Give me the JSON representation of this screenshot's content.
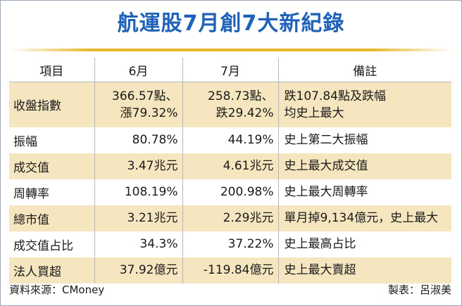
{
  "title": "航運股7月創7大新紀錄",
  "headers": [
    "項目",
    "6月",
    "7月",
    "備註"
  ],
  "rows": [
    {
      "item": "收盤指數",
      "jun": [
        "366.57點、",
        "漲79.32%"
      ],
      "jul": [
        "258.73點、",
        "跌29.42%"
      ],
      "note": [
        "跌107.84點及跌幅",
        "均史上最大"
      ]
    },
    {
      "item": "振幅",
      "jun": [
        "80.78%"
      ],
      "jul": [
        "44.19%"
      ],
      "note": [
        "史上第二大振幅"
      ]
    },
    {
      "item": "成交值",
      "jun": [
        "3.47兆元"
      ],
      "jul": [
        "4.61兆元"
      ],
      "note": [
        "史上最大成交值"
      ]
    },
    {
      "item": "周轉率",
      "jun": [
        "108.19%"
      ],
      "jul": [
        "200.98%"
      ],
      "note": [
        "史上最大周轉率"
      ]
    },
    {
      "item": "總市值",
      "jun": [
        "3.21兆元"
      ],
      "jul": [
        "2.29兆元"
      ],
      "note": [
        "單月掉9,134億元，史上最大"
      ]
    },
    {
      "item": "成交值占比",
      "jun": [
        "34.3%"
      ],
      "jul": [
        "37.22%"
      ],
      "note": [
        "史上最高占比"
      ]
    },
    {
      "item": "法人買超",
      "jun": [
        "37.92億元"
      ],
      "jul": [
        "-119.84億元"
      ],
      "note": [
        "史上最大賣超"
      ]
    }
  ],
  "footer": {
    "source": "資料來源：CMoney",
    "credit": "製表：呂淑美"
  },
  "colors": {
    "title": "#1e63b8",
    "rule": "#e9b82b",
    "stripe": "#f5e6bf"
  }
}
